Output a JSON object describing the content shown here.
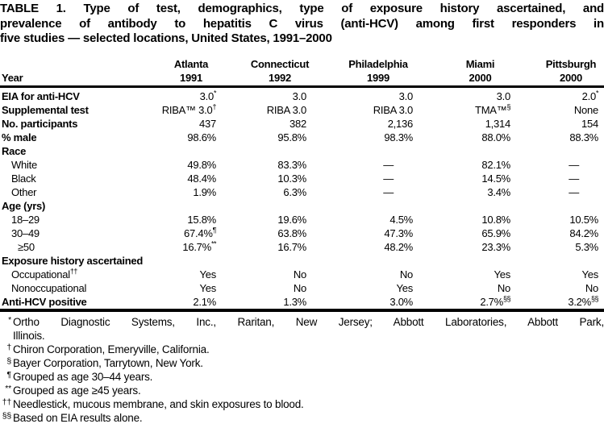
{
  "title": {
    "line1": "TABLE 1. Type of test, demographics, type of exposure history ascertained, and",
    "line2": "prevalence of antibody to hepatitis C virus (anti-HCV) among first responders in",
    "line3": "five studies — selected locations, United States, 1991–2000"
  },
  "table": {
    "year_label": "Year",
    "columns": [
      {
        "city": "Atlanta",
        "year": "1991"
      },
      {
        "city": "Connecticut",
        "year": "1992"
      },
      {
        "city": "Philadelphia",
        "year": "1999"
      },
      {
        "city": "Miami",
        "year": "2000"
      },
      {
        "city": "Pittsburgh",
        "year": "2000"
      }
    ],
    "rows": [
      {
        "label": "EIA for anti-HCV",
        "bold": true,
        "values": [
          {
            "v": "3.0",
            "s": "*"
          },
          "3.0",
          "3.0",
          "3.0",
          {
            "v": "2.0",
            "s": "*"
          }
        ]
      },
      {
        "label": "Supplemental test",
        "bold": true,
        "values": [
          {
            "v": "RIBA™ 3.0",
            "s": "†"
          },
          "RIBA 3.0",
          "RIBA 3.0",
          {
            "v": "TMA™",
            "s": "§"
          },
          "None"
        ]
      },
      {
        "label": "No. participants",
        "bold": true,
        "values": [
          "437",
          "382",
          "2,136",
          "1,314",
          "154"
        ]
      },
      {
        "label": "% male",
        "bold": true,
        "values": [
          "98.6%",
          "95.8%",
          "98.3%",
          "88.0%",
          "88.3%"
        ]
      },
      {
        "label": "Race",
        "bold": true,
        "section": true
      },
      {
        "label": "White",
        "indent": 1,
        "values": [
          "49.8%",
          "83.3%",
          "—",
          "82.1%",
          "—"
        ]
      },
      {
        "label": "Black",
        "indent": 1,
        "values": [
          "48.4%",
          "10.3%",
          "—",
          "14.5%",
          "—"
        ]
      },
      {
        "label": "Other",
        "indent": 1,
        "values": [
          "1.9%",
          "6.3%",
          "—",
          "3.4%",
          "—"
        ]
      },
      {
        "label": "Age (yrs)",
        "bold": true,
        "section": true
      },
      {
        "label": "18–29",
        "indent": 1,
        "values": [
          "15.8%",
          "19.6%",
          "4.5%",
          "10.8%",
          "10.5%"
        ]
      },
      {
        "label": "30–49",
        "indent": 1,
        "values": [
          {
            "v": "67.4%",
            "s": "¶"
          },
          "63.8%",
          "47.3%",
          "65.9%",
          "84.2%"
        ]
      },
      {
        "label": "≥50",
        "indent": 2,
        "values": [
          {
            "v": "16.7%",
            "s": "**"
          },
          "16.7%",
          "48.2%",
          "23.3%",
          "5.3%"
        ]
      },
      {
        "label": "Exposure history ascertained",
        "bold": true,
        "section": true
      },
      {
        "label": "Occupational",
        "label_sup": "††",
        "indent": 1,
        "values": [
          "Yes",
          "No",
          "No",
          "Yes",
          "Yes"
        ]
      },
      {
        "label": "Nonoccupational",
        "indent": 1,
        "values": [
          "Yes",
          "No",
          "Yes",
          "No",
          "No"
        ]
      },
      {
        "label": "Anti-HCV positive",
        "bold": true,
        "values": [
          "2.1%",
          "1.3%",
          "3.0%",
          {
            "v": "2.7%",
            "s": "§§"
          },
          {
            "v": "3.2%",
            "s": "§§"
          }
        ]
      }
    ]
  },
  "footnotes": [
    {
      "marker": "*",
      "justify": true,
      "lines": [
        "Ortho Diagnostic Systems, Inc., Raritan, New Jersey; Abbott Laboratories, Abbott Park,",
        "Illinois."
      ]
    },
    {
      "marker": "†",
      "lines": [
        "Chiron Corporation, Emeryville, California."
      ]
    },
    {
      "marker": "§",
      "lines": [
        "Bayer Corporation, Tarrytown, New York."
      ]
    },
    {
      "marker": "¶",
      "lines": [
        "Grouped as age 30–44 years."
      ]
    },
    {
      "marker": "**",
      "lines": [
        "Grouped as age ≥45 years."
      ]
    },
    {
      "marker": "††",
      "lines": [
        "Needlestick, mucous membrane, and skin exposures to blood."
      ]
    },
    {
      "marker": "§§",
      "lines": [
        "Based on EIA results alone."
      ]
    }
  ]
}
